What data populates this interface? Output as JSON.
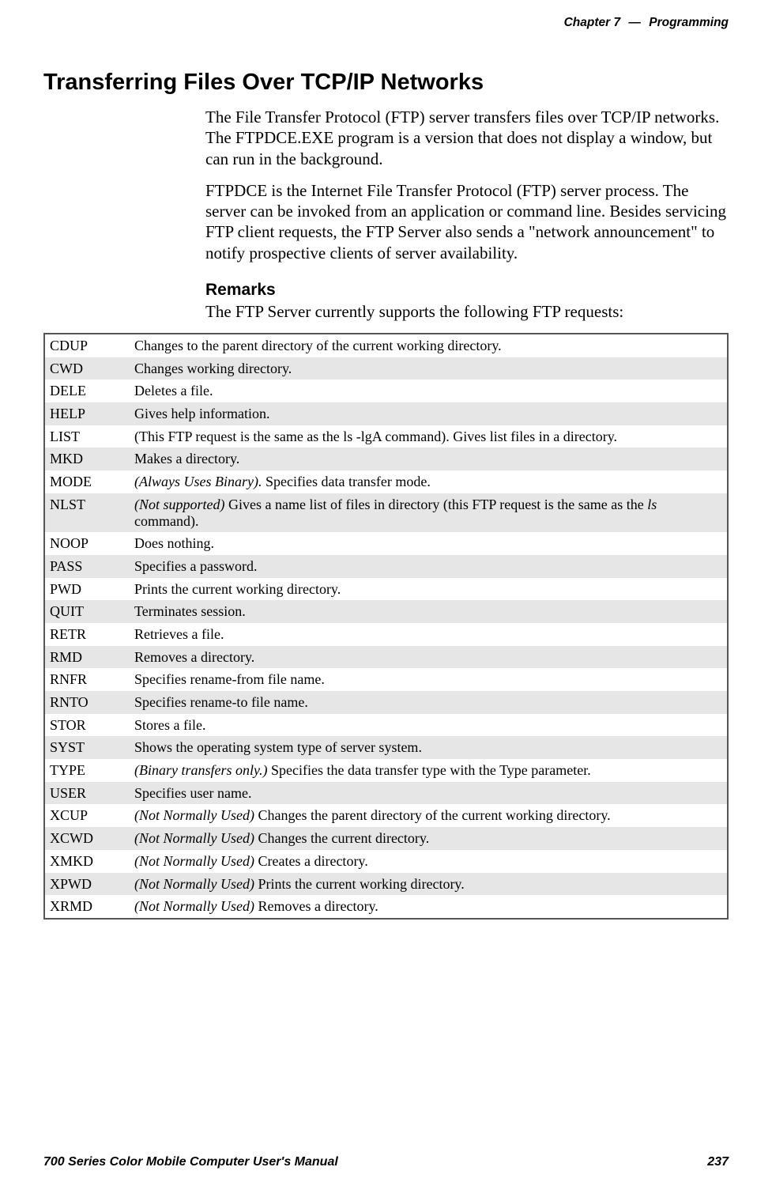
{
  "header": {
    "chapter_word": "Chapter",
    "chapter_num": "7",
    "dash": "—",
    "chapter_name": "Programming"
  },
  "title": "Transferring Files Over TCP/IP Networks",
  "para1": "The File Transfer Protocol (FTP) server transfers files over TCP/IP networks. The FTPDCE.EXE program is a version that does not display a window, but can run in the background.",
  "para2": "FTPDCE is the Internet File Transfer Protocol (FTP) server process. The server can be invoked from an application or command line. Besides servicing FTP client requests, the FTP Server also sends a \"network announcement\" to notify prospective clients of server availability.",
  "remarks_head": "Remarks",
  "remarks_text": "The FTP Server currently supports the following FTP requests:",
  "table": {
    "rows": [
      {
        "cmd": "CDUP",
        "desc": "Changes to the parent directory of the current working directory.",
        "alt": false
      },
      {
        "cmd": "CWD",
        "desc": "Changes working directory.",
        "alt": true
      },
      {
        "cmd": "DELE",
        "desc": "Deletes a file.",
        "alt": false
      },
      {
        "cmd": "HELP",
        "desc": "Gives help information.",
        "alt": true
      },
      {
        "cmd": "LIST",
        "desc": "(This FTP request is the same as the ls -lgA command). Gives list files in a directory.",
        "alt": false
      },
      {
        "cmd": "MKD",
        "desc": "Makes a directory.",
        "alt": true
      },
      {
        "cmd": "MODE",
        "italic_prefix": "(Always Uses Binary).",
        "desc_rest": " Specifies data transfer mode.",
        "alt": false
      },
      {
        "cmd": "NLST",
        "italic_prefix": "(Not supported)",
        "desc_rest": " Gives a name list of files in directory (this FTP request is the same as the ",
        "italic_mid": "ls",
        "desc_tail": " command).",
        "alt": true
      },
      {
        "cmd": "NOOP",
        "desc": "Does nothing.",
        "alt": false
      },
      {
        "cmd": "PASS",
        "desc": "Specifies a password.",
        "alt": true
      },
      {
        "cmd": "PWD",
        "desc": "Prints the current working directory.",
        "alt": false
      },
      {
        "cmd": "QUIT",
        "desc": "Terminates session.",
        "alt": true
      },
      {
        "cmd": "RETR",
        "desc": "Retrieves a file.",
        "alt": false
      },
      {
        "cmd": "RMD",
        "desc": "Removes a directory.",
        "alt": true
      },
      {
        "cmd": "RNFR",
        "desc": "Specifies rename-from file name.",
        "alt": false
      },
      {
        "cmd": "RNTO",
        "desc": "Specifies rename-to file name.",
        "alt": true
      },
      {
        "cmd": "STOR",
        "desc": "Stores a file.",
        "alt": false
      },
      {
        "cmd": "SYST",
        "desc": "Shows the operating system type of server system.",
        "alt": true
      },
      {
        "cmd": "TYPE",
        "italic_prefix": "(Binary transfers only.)",
        "desc_rest": " Specifies the data transfer type with the Type parameter.",
        "alt": false
      },
      {
        "cmd": "USER",
        "desc": "Specifies user name.",
        "alt": true
      },
      {
        "cmd": "XCUP",
        "italic_prefix": "(Not Normally Used)",
        "desc_rest": " Changes the parent directory of the current working directory.",
        "alt": false
      },
      {
        "cmd": "XCWD",
        "italic_prefix": "(Not Normally Used)",
        "desc_rest": " Changes the current directory.",
        "alt": true
      },
      {
        "cmd": "XMKD",
        "italic_prefix": "(Not Normally Used)",
        "desc_rest": " Creates a directory.",
        "alt": false
      },
      {
        "cmd": "XPWD",
        "italic_prefix": "(Not Normally Used)",
        "desc_rest": " Prints the current working directory.",
        "alt": true
      },
      {
        "cmd": "XRMD",
        "italic_prefix": "(Not Normally Used)",
        "desc_rest": " Removes a directory.",
        "alt": false
      }
    ]
  },
  "footer": {
    "manual": "700 Series Color Mobile Computer User's Manual",
    "page": "237"
  }
}
